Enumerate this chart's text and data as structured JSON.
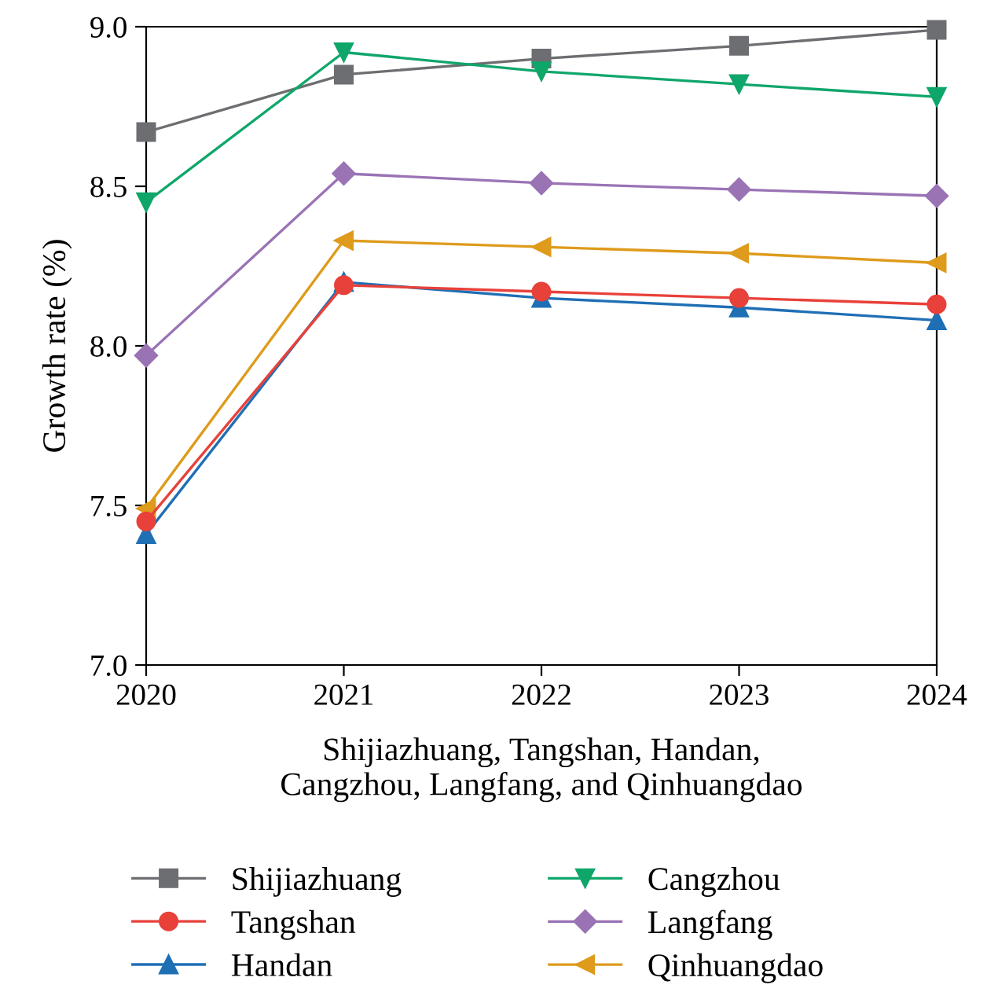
{
  "chart_data": {
    "type": "line",
    "xlabel": "Shijiazhuang, Tangshan, Handan,\nCangzhou, Langfang, and Qinhuangdao",
    "ylabel": "Growth rate (%)",
    "x": [
      2020,
      2021,
      2022,
      2023,
      2024
    ],
    "xlim": [
      2020,
      2024
    ],
    "xticks": [
      2020,
      2021,
      2022,
      2023,
      2024
    ],
    "ylim": [
      7.0,
      9.0
    ],
    "yticks": [
      {
        "value": 7.0,
        "label": "7.0"
      },
      {
        "value": 7.5,
        "label": "7.5"
      },
      {
        "value": 8.0,
        "label": "8.0"
      },
      {
        "value": 8.5,
        "label": "8.5"
      },
      {
        "value": 9.0,
        "label": "9.0"
      }
    ],
    "grid": false,
    "legend": "bottom",
    "line_style": "solid",
    "series": [
      {
        "name": "Shijiazhuang",
        "color": "#6d6e71",
        "marker": "square",
        "values": [
          8.67,
          8.85,
          8.9,
          8.94,
          8.99
        ]
      },
      {
        "name": "Tangshan",
        "color": "#e8413a",
        "marker": "circle",
        "values": [
          7.45,
          8.19,
          8.17,
          8.15,
          8.13
        ]
      },
      {
        "name": "Handan",
        "color": "#1f6fb5",
        "marker": "triangle",
        "values": [
          7.41,
          8.2,
          8.15,
          8.12,
          8.08
        ]
      },
      {
        "name": "Cangzhou",
        "color": "#0fa66a",
        "marker": "triangle_down",
        "values": [
          8.45,
          8.92,
          8.86,
          8.82,
          8.78
        ]
      },
      {
        "name": "Langfang",
        "color": "#9a73b5",
        "marker": "diamond",
        "values": [
          7.97,
          8.54,
          8.51,
          8.49,
          8.47
        ]
      },
      {
        "name": "Qinhuangdao",
        "color": "#de9b1c",
        "marker": "triangle_left",
        "values": [
          7.49,
          8.33,
          8.31,
          8.29,
          8.26
        ]
      }
    ]
  }
}
